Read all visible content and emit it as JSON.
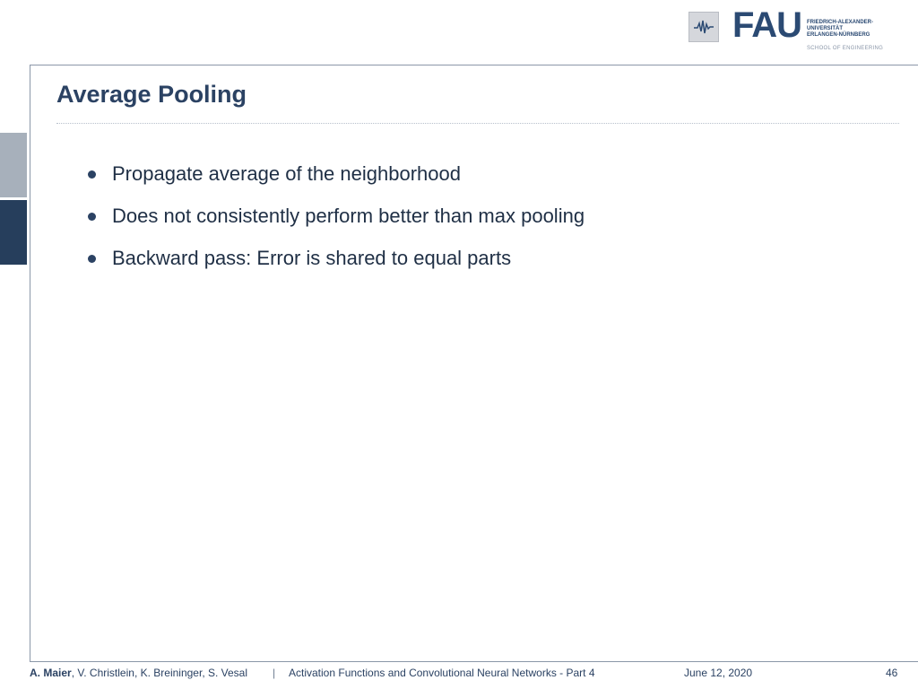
{
  "header": {
    "logo_text": "FAU",
    "university_lines": [
      "FRIEDRICH-ALEXANDER-",
      "UNIVERSITÄT",
      "ERLANGEN-NÜRNBERG"
    ],
    "school": "SCHOOL OF ENGINEERING",
    "emblem_icon": "waveform-emblem-icon"
  },
  "slide": {
    "title": "Average Pooling",
    "bullets": [
      "Propagate average of the neighborhood",
      "Does not consistently perform better than max pooling",
      "Backward pass: Error is shared to equal parts"
    ]
  },
  "footer": {
    "lead_author": "A. Maier",
    "other_authors": ", V. Christlein, K. Breininger, S. Vesal",
    "separator": "|",
    "lecture": "Activation Functions and Convolutional Neural Networks - Part 4",
    "date": "June 12, 2020",
    "page": "46"
  },
  "colors": {
    "primary": "#2b4263",
    "side_tab_dark": "#263e5c",
    "side_tab_light": "#a7b0bb"
  }
}
